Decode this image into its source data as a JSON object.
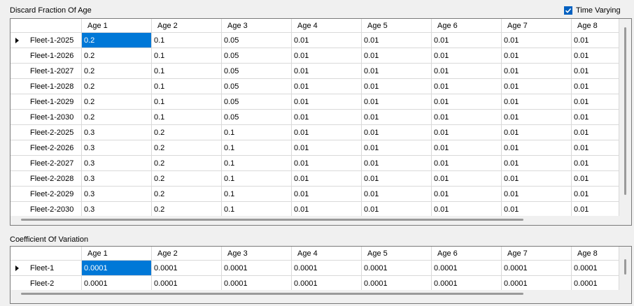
{
  "discard": {
    "title": "Discard Fraction Of Age",
    "time_varying_label": "Time Varying",
    "time_varying_checked": true,
    "columns": [
      "Age 1",
      "Age 2",
      "Age 3",
      "Age 4",
      "Age 5",
      "Age 6",
      "Age 7",
      "Age 8"
    ],
    "rows": [
      {
        "label": "Fleet-1-2025",
        "values": [
          "0.2",
          "0.1",
          "0.05",
          "0.01",
          "0.01",
          "0.01",
          "0.01",
          "0.01"
        ]
      },
      {
        "label": "Fleet-1-2026",
        "values": [
          "0.2",
          "0.1",
          "0.05",
          "0.01",
          "0.01",
          "0.01",
          "0.01",
          "0.01"
        ]
      },
      {
        "label": "Fleet-1-2027",
        "values": [
          "0.2",
          "0.1",
          "0.05",
          "0.01",
          "0.01",
          "0.01",
          "0.01",
          "0.01"
        ]
      },
      {
        "label": "Fleet-1-2028",
        "values": [
          "0.2",
          "0.1",
          "0.05",
          "0.01",
          "0.01",
          "0.01",
          "0.01",
          "0.01"
        ]
      },
      {
        "label": "Fleet-1-2029",
        "values": [
          "0.2",
          "0.1",
          "0.05",
          "0.01",
          "0.01",
          "0.01",
          "0.01",
          "0.01"
        ]
      },
      {
        "label": "Fleet-1-2030",
        "values": [
          "0.2",
          "0.1",
          "0.05",
          "0.01",
          "0.01",
          "0.01",
          "0.01",
          "0.01"
        ]
      },
      {
        "label": "Fleet-2-2025",
        "values": [
          "0.3",
          "0.2",
          "0.1",
          "0.01",
          "0.01",
          "0.01",
          "0.01",
          "0.01"
        ]
      },
      {
        "label": "Fleet-2-2026",
        "values": [
          "0.3",
          "0.2",
          "0.1",
          "0.01",
          "0.01",
          "0.01",
          "0.01",
          "0.01"
        ]
      },
      {
        "label": "Fleet-2-2027",
        "values": [
          "0.3",
          "0.2",
          "0.1",
          "0.01",
          "0.01",
          "0.01",
          "0.01",
          "0.01"
        ]
      },
      {
        "label": "Fleet-2-2028",
        "values": [
          "0.3",
          "0.2",
          "0.1",
          "0.01",
          "0.01",
          "0.01",
          "0.01",
          "0.01"
        ]
      },
      {
        "label": "Fleet-2-2029",
        "values": [
          "0.3",
          "0.2",
          "0.1",
          "0.01",
          "0.01",
          "0.01",
          "0.01",
          "0.01"
        ]
      },
      {
        "label": "Fleet-2-2030",
        "values": [
          "0.3",
          "0.2",
          "0.1",
          "0.01",
          "0.01",
          "0.01",
          "0.01",
          "0.01"
        ]
      }
    ]
  },
  "cv": {
    "title": "Coefficient Of Variation",
    "columns": [
      "Age 1",
      "Age 2",
      "Age 3",
      "Age 4",
      "Age 5",
      "Age 6",
      "Age 7",
      "Age 8"
    ],
    "rows": [
      {
        "label": "Fleet-1",
        "values": [
          "0.0001",
          "0.0001",
          "0.0001",
          "0.0001",
          "0.0001",
          "0.0001",
          "0.0001",
          "0.0001"
        ]
      },
      {
        "label": "Fleet-2",
        "values": [
          "0.0001",
          "0.0001",
          "0.0001",
          "0.0001",
          "0.0001",
          "0.0001",
          "0.0001",
          "0.0001"
        ]
      }
    ]
  },
  "icons": {
    "current_row": "current-row-arrow-icon",
    "check": "check-icon"
  },
  "colors": {
    "selection": "#0078d7",
    "checkbox": "#0060c0"
  }
}
